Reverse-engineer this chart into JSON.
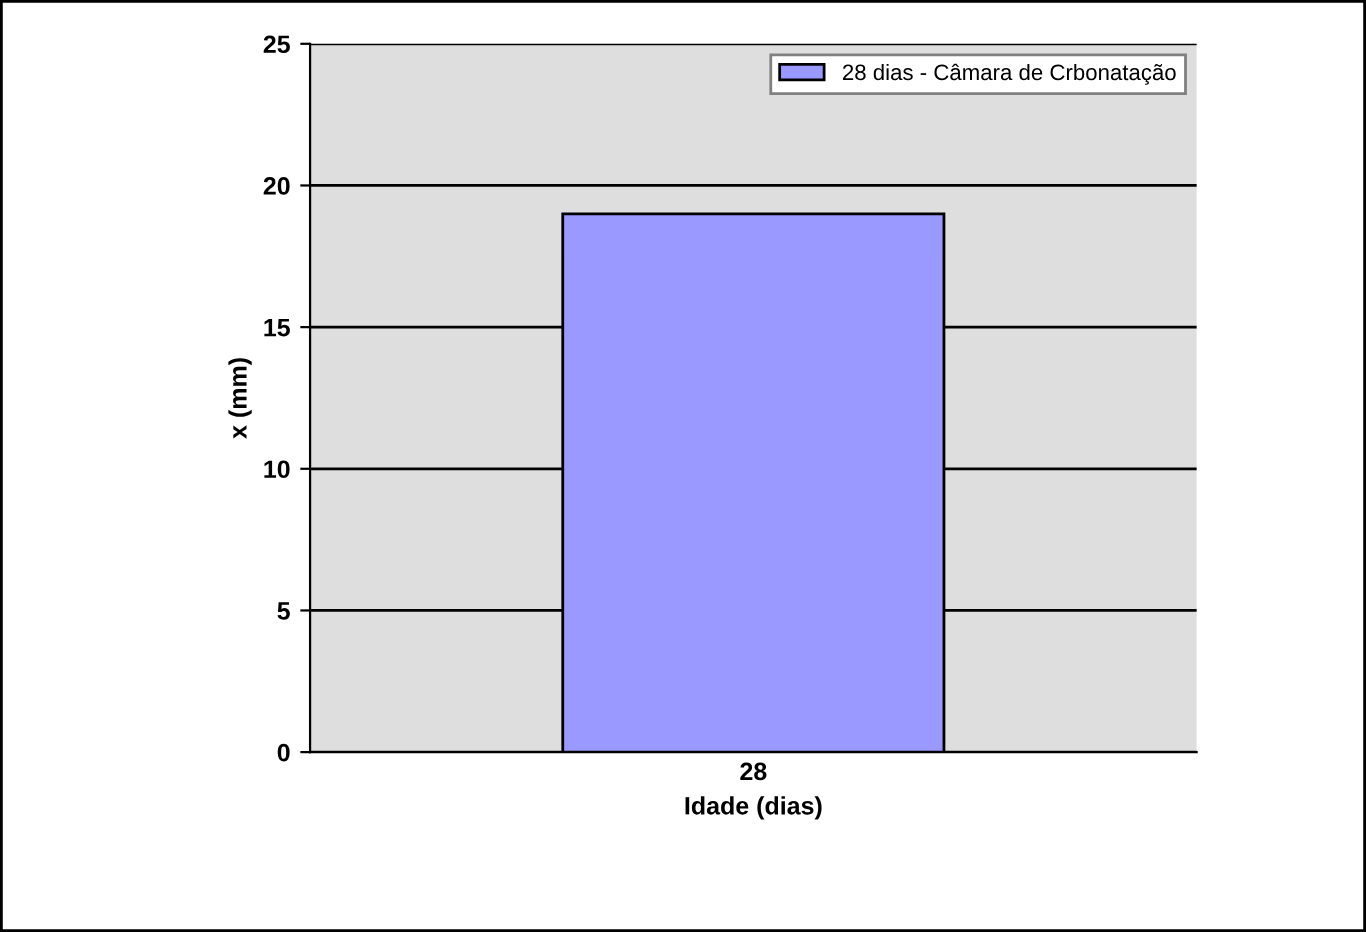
{
  "chart_data": {
    "type": "bar",
    "xlabel": "Idade (dias)",
    "ylabel": "x (mm)",
    "categories": [
      "28"
    ],
    "series": [
      {
        "name": "28 dias - Câmara de Crbonatação",
        "color": "#9999ff",
        "values": [
          19
        ]
      }
    ],
    "ylim": [
      0,
      25
    ],
    "yticks": [
      0,
      5,
      10,
      15,
      20,
      25
    ],
    "grid": "y",
    "legend": "top right"
  }
}
